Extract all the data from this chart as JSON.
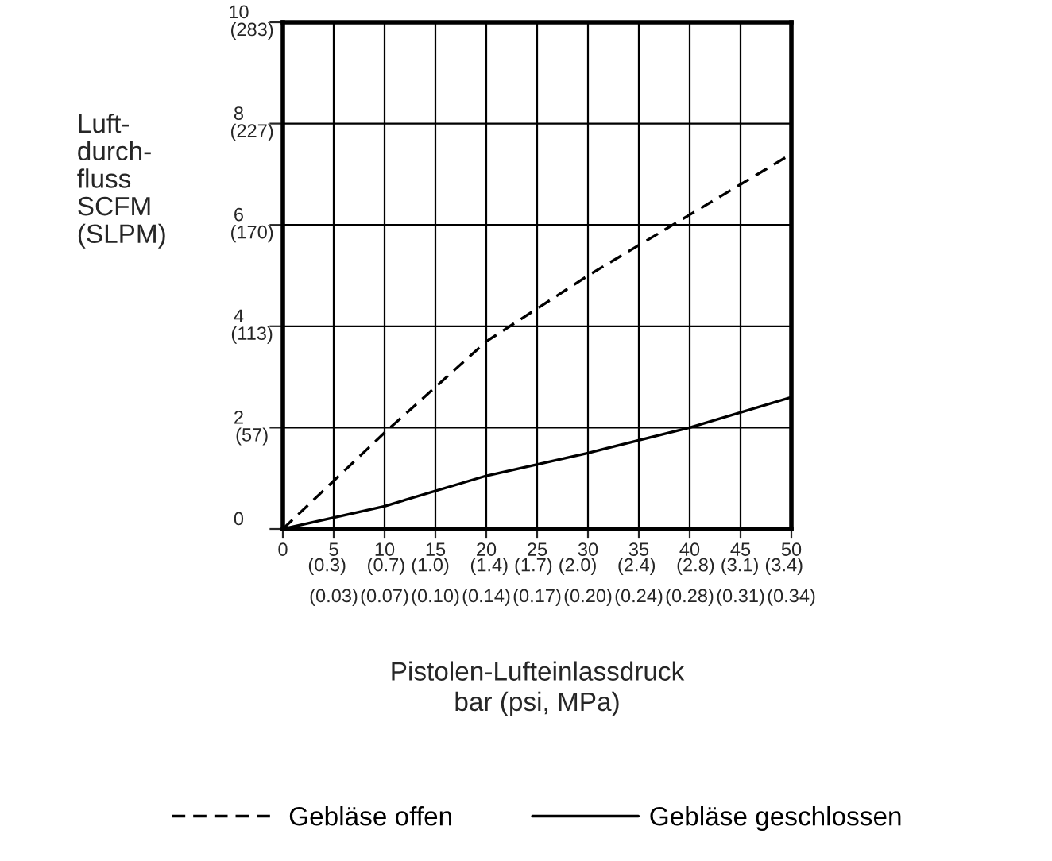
{
  "chart_data": {
    "type": "line",
    "xlabel": "Pistolen-Lufteinlassdruck\nbar (psi, MPa)",
    "ylabel": "Luft-\ndurch-\nfluss\nSCFM\n(SLPM)",
    "xlim": [
      0,
      50
    ],
    "ylim": [
      0,
      10
    ],
    "xticks": [
      0,
      5,
      10,
      15,
      20,
      25,
      30,
      35,
      40,
      45,
      50
    ],
    "x2lim": [
      0,
      3.45
    ],
    "x2ticks": [
      {
        "value": 0.3,
        "label": "(0.3)"
      },
      {
        "value": 0.7,
        "label": "(0.7)"
      },
      {
        "value": 1.0,
        "label": "(1.0)"
      },
      {
        "value": 1.4,
        "label": "(1.4)"
      },
      {
        "value": 1.7,
        "label": "(1.7)"
      },
      {
        "value": 2.0,
        "label": "(2.0)"
      },
      {
        "value": 2.4,
        "label": "(2.4)"
      },
      {
        "value": 2.8,
        "label": "(2.8)"
      },
      {
        "value": 3.1,
        "label": "(3.1)"
      },
      {
        "value": 3.4,
        "label": "(3.4)"
      }
    ],
    "annotations": [
      "(0.03)",
      "(0.07)",
      "(0.10)",
      "(0.14)",
      "(0.17)",
      "(0.20)",
      "(0.24)",
      "(0.28)",
      "(0.31)",
      "(0.34)"
    ],
    "yticks": [
      0,
      2,
      4,
      6,
      8,
      10
    ],
    "y2lim": [
      0,
      283.2
    ],
    "y2ticks": [
      {
        "value": 56.6,
        "label": "(57)"
      },
      {
        "value": 113.3,
        "label": "(113)"
      },
      {
        "value": 169.9,
        "label": "(170)"
      },
      {
        "value": 226.5,
        "label": "(227)"
      },
      {
        "value": 283.2,
        "label": "(283)"
      }
    ],
    "grid": true,
    "legend": "bottom",
    "series": [
      {
        "name": "Gebläse offen",
        "color": "#000000",
        "line_style": "dashed",
        "x": [
          0,
          10,
          20,
          30,
          40,
          50
        ],
        "values": [
          0,
          1.9,
          3.7,
          5.0,
          6.2,
          7.4
        ]
      },
      {
        "name": "Gebläse geschlossen",
        "color": "#000000",
        "line_style": "solid",
        "x": [
          0,
          10,
          20,
          30,
          40,
          50
        ],
        "values": [
          0,
          0.45,
          1.05,
          1.5,
          2.0,
          2.6
        ]
      }
    ]
  }
}
